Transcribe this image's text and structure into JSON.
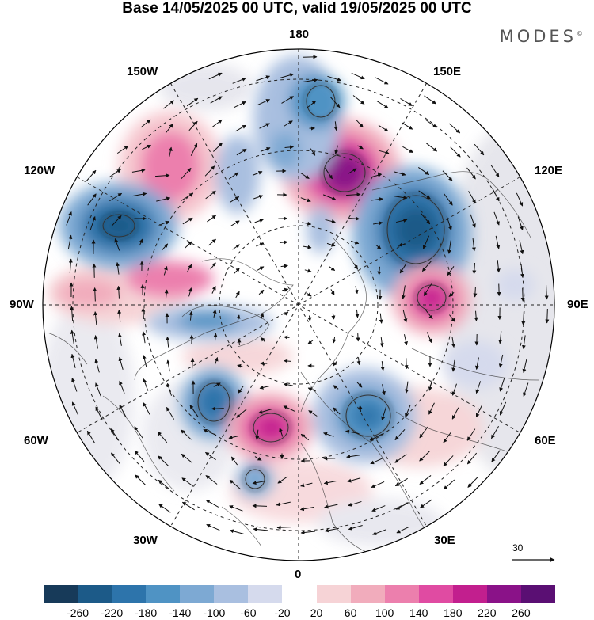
{
  "title": "Base 14/05/2025 00 UTC, valid 19/05/2025 00 UTC",
  "brand": "MODES",
  "brand_mark": "©",
  "longitude_labels": {
    "top": "180",
    "upper_left": "150W",
    "upper_right": "150E",
    "left_upper": "120W",
    "right_upper": "120E",
    "left": "90W",
    "right": "90E",
    "left_lower": "60W",
    "right_lower": "60E",
    "lower_left": "30W",
    "lower_right": "30E",
    "bottom": "0"
  },
  "vector_scale_label": "30",
  "colorbar": {
    "ticks": [
      "-260",
      "-220",
      "-180",
      "-140",
      "-100",
      "-60",
      "-20",
      "20",
      "60",
      "100",
      "140",
      "180",
      "220",
      "260"
    ],
    "colors": [
      "#173a59",
      "#1c5a88",
      "#2d74ab",
      "#4f93c4",
      "#7da9d3",
      "#a9bfe0",
      "#d5daed",
      "#ffffff",
      "#f6d3d6",
      "#f1acbc",
      "#ec7fad",
      "#e04ba2",
      "#c21f8e",
      "#8a1288",
      "#5a0f73"
    ]
  },
  "anomaly_features": [
    {
      "type": "positive",
      "level": 260,
      "near": "130E"
    },
    {
      "type": "negative",
      "level": -220,
      "near": "115W"
    },
    {
      "type": "negative",
      "level": -220,
      "near": "130E"
    },
    {
      "type": "positive",
      "level": 220,
      "near": "85E"
    },
    {
      "type": "positive",
      "level": 220,
      "near": "30W"
    },
    {
      "type": "negative",
      "level": -180,
      "near": "60W"
    },
    {
      "type": "negative",
      "level": -180,
      "near": "45E"
    },
    {
      "type": "negative",
      "level": -140,
      "near": "170W"
    },
    {
      "type": "positive",
      "level": 140,
      "near": "140W"
    }
  ]
}
